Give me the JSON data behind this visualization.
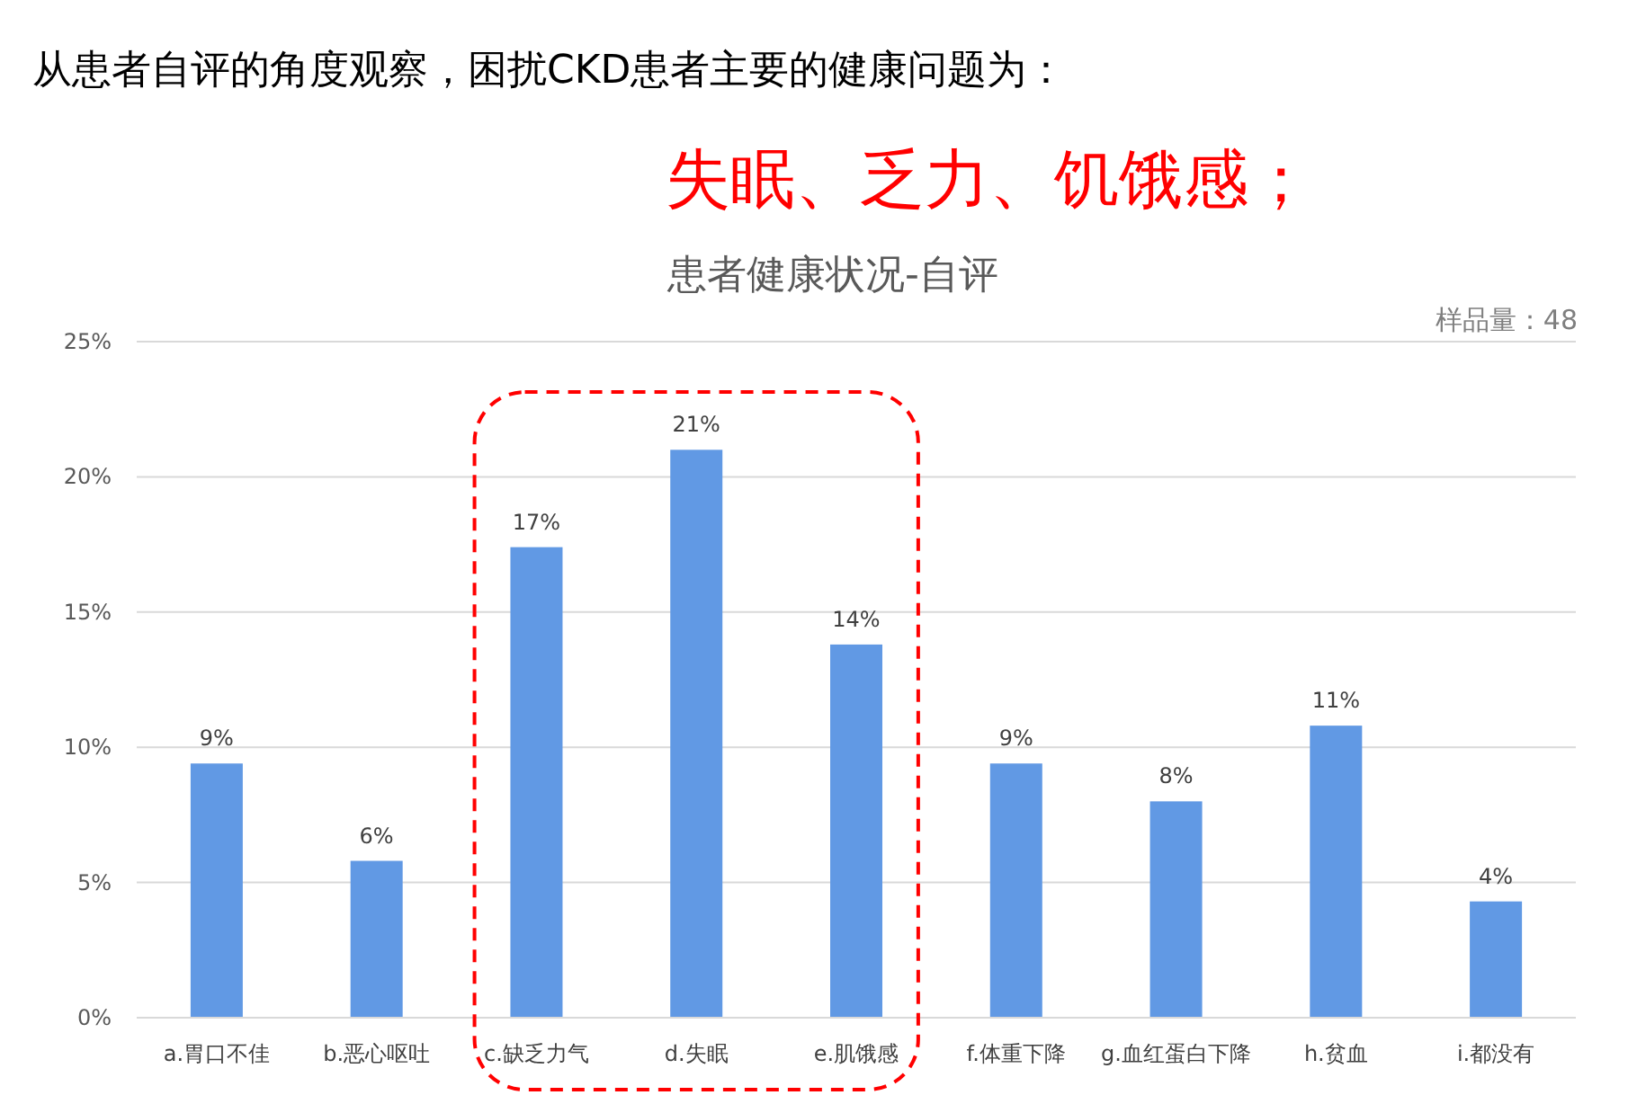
{
  "chart_data": {
    "type": "bar",
    "title": "患者健康状况-自评",
    "categories": [
      "a.胃口不佳",
      "b.恶心呕吐",
      "c.缺乏力气",
      "d.失眠",
      "e.肌饿感",
      "f.体重下降",
      "g.血红蛋白下降",
      "h.贫血",
      "i.都没有"
    ],
    "values": [
      9.4,
      5.8,
      17.4,
      21.0,
      13.8,
      9.4,
      8.0,
      10.8,
      4.3
    ],
    "value_labels": [
      "9%",
      "6%",
      "17%",
      "21%",
      "14%",
      "9%",
      "8%",
      "11%",
      "4%"
    ],
    "color": "#6199e4",
    "ylim": [
      0,
      25
    ],
    "yticks": [
      {
        "value": 0,
        "label": "0%"
      },
      {
        "value": 5,
        "label": "5%"
      },
      {
        "value": 10,
        "label": "10%"
      },
      {
        "value": 15,
        "label": "15%"
      },
      {
        "value": 20,
        "label": "20%"
      },
      {
        "value": 25,
        "label": "25%"
      }
    ],
    "grid": "y",
    "annotations": [
      "从患者自评的角度观察，困扰CKD患者主要的健康问题为：",
      "失眠、乏力、饥饿感；",
      "样品量：48"
    ]
  }
}
